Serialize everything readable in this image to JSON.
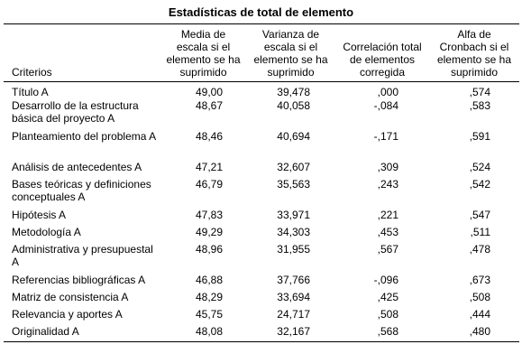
{
  "title": "Estadísticas de total de elemento",
  "headers": {
    "criterios": "Criterios",
    "media": "Media de escala si el elemento se ha suprimido",
    "varianza": "Varianza de escala si el elemento se ha suprimido",
    "correlacion": "Correlación total de elementos corregida",
    "alfa": "Alfa de Cronbach si el elemento se ha suprimido"
  },
  "rows": [
    {
      "criterio": "Título A",
      "media": "49,00",
      "varianza": "39,478",
      "correlacion": ",000",
      "alfa": ",574"
    },
    {
      "criterio": "Desarrollo de la estructura básica del proyecto A",
      "media": "48,67",
      "varianza": "40,058",
      "correlacion": "-,084",
      "alfa": ",583"
    },
    {
      "criterio": "Planteamiento del problema A",
      "media": "48,46",
      "varianza": "40,694",
      "correlacion": "-,171",
      "alfa": ",591"
    },
    {
      "criterio": "Análisis de antecedentes A",
      "media": "47,21",
      "varianza": "32,607",
      "correlacion": ",309",
      "alfa": ",524"
    },
    {
      "criterio": "Bases teóricas y definiciones conceptuales A",
      "media": "46,79",
      "varianza": "35,563",
      "correlacion": ",243",
      "alfa": ",542"
    },
    {
      "criterio": "Hipótesis A",
      "media": "47,83",
      "varianza": "33,971",
      "correlacion": ",221",
      "alfa": ",547"
    },
    {
      "criterio": "Metodología A",
      "media": "49,29",
      "varianza": "34,303",
      "correlacion": ",453",
      "alfa": ",511"
    },
    {
      "criterio": "Administrativa y presupuestal A",
      "media": "48,96",
      "varianza": "31,955",
      "correlacion": ",567",
      "alfa": ",478"
    },
    {
      "criterio": "Referencias bibliográficas A",
      "media": "46,88",
      "varianza": "37,766",
      "correlacion": "-,096",
      "alfa": ",673"
    },
    {
      "criterio": "Matriz de consistencia A",
      "media": "48,29",
      "varianza": "33,694",
      "correlacion": ",425",
      "alfa": ",508"
    },
    {
      "criterio": "Relevancia y aportes A",
      "media": "45,75",
      "varianza": "24,717",
      "correlacion": ",508",
      "alfa": ",444"
    },
    {
      "criterio": "Originalidad A",
      "media": "48,08",
      "varianza": "32,167",
      "correlacion": ",568",
      "alfa": ",480"
    }
  ]
}
